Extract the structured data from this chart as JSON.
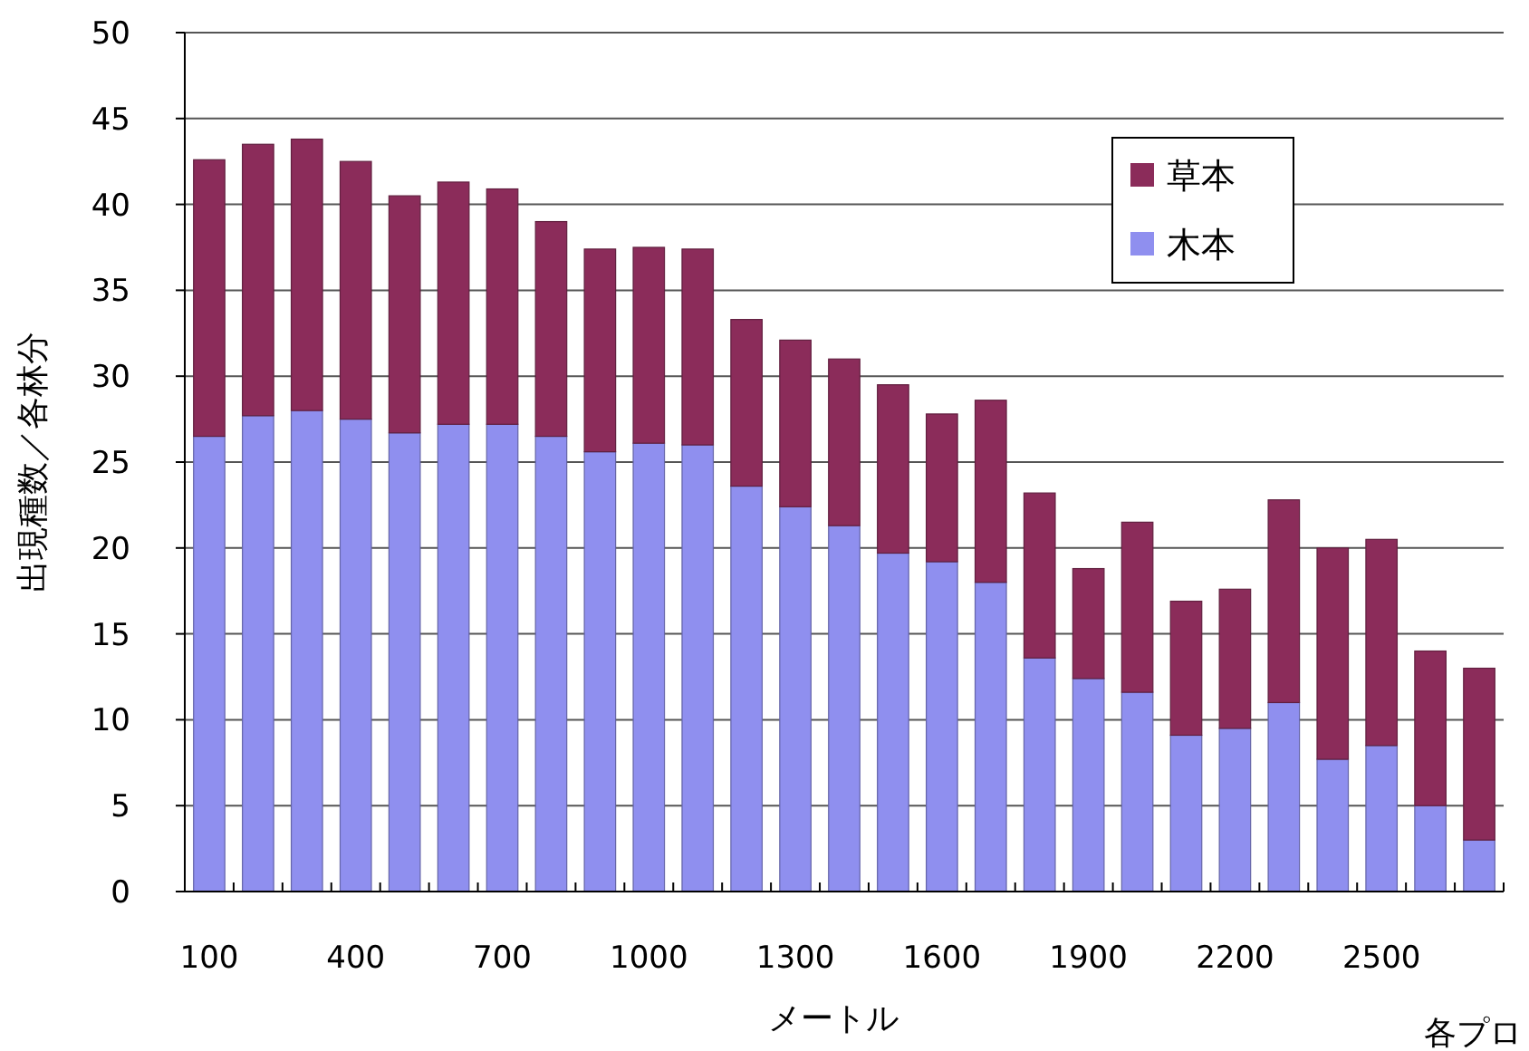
{
  "chart_data": {
    "type": "bar",
    "stacked": true,
    "categories": [
      "100",
      null,
      null,
      "400",
      null,
      null,
      "700",
      null,
      null,
      "1000",
      null,
      null,
      "1300",
      null,
      null,
      "1600",
      null,
      null,
      "1900",
      null,
      null,
      "2200",
      null,
      null,
      "2500",
      null,
      null
    ],
    "series": [
      {
        "name": "木本",
        "color": "#8f8fef",
        "values": [
          26.5,
          27.7,
          28.0,
          27.5,
          26.7,
          27.2,
          27.2,
          26.5,
          25.6,
          26.1,
          26.0,
          23.6,
          22.4,
          21.3,
          19.7,
          19.2,
          18.0,
          13.6,
          12.4,
          11.6,
          9.1,
          9.5,
          11.0,
          7.7,
          8.5,
          5.0,
          3.0
        ]
      },
      {
        "name": "草本",
        "color": "#8b2c5a",
        "values": [
          16.1,
          15.8,
          15.8,
          15.0,
          13.8,
          14.1,
          13.7,
          12.5,
          11.8,
          11.4,
          11.4,
          9.7,
          9.7,
          9.7,
          9.8,
          8.6,
          10.6,
          9.6,
          6.4,
          9.9,
          7.8,
          8.1,
          11.8,
          12.3,
          12.0,
          9.0,
          10.0
        ]
      }
    ],
    "ylim": [
      0,
      50
    ],
    "yticks": [
      0,
      5,
      10,
      15,
      20,
      25,
      30,
      35,
      40,
      45,
      50
    ],
    "ylabel": "出現種数／各林分",
    "xlabel": "メートル",
    "annotations": [
      "各プロ"
    ],
    "grid": "y",
    "legend": "top right"
  }
}
